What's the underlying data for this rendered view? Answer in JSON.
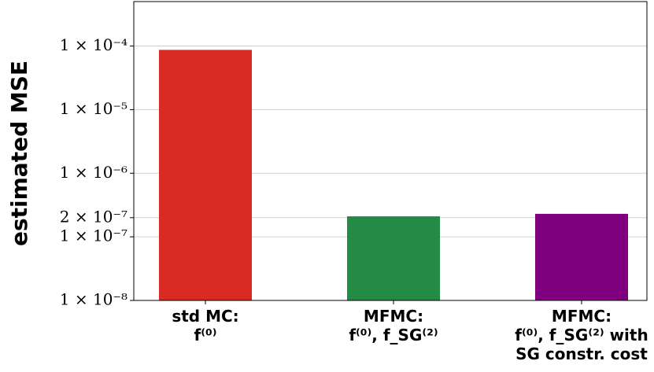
{
  "chart_data": {
    "type": "bar",
    "y_label": "estimated MSE",
    "categories": [
      "std MC:\nf⁽⁰⁾",
      "MFMC:\nf⁽⁰⁾, f_SG⁽²⁾",
      "MFMC:\nf⁽⁰⁾, f_SG⁽²⁾ with\nSG constr. cost"
    ],
    "series": [
      {
        "name": "estimated MSE",
        "colors": [
          "#d92a24",
          "#238b45",
          "#7f007f"
        ],
        "values": [
          8.7e-05,
          2.1e-07,
          2.3e-07
        ]
      }
    ],
    "log_y": true,
    "grid": true,
    "ylim": [
      1e-08,
      0.0005
    ],
    "yticks": [
      {
        "value": 1e-08,
        "label": "1 × 10⁻⁸"
      },
      {
        "value": 1e-07,
        "label": "1 × 10⁻⁷"
      },
      {
        "value": 2e-07,
        "label": "2 × 10⁻⁷"
      },
      {
        "value": 1e-06,
        "label": "1 × 10⁻⁶"
      },
      {
        "value": 1e-05,
        "label": "1 × 10⁻⁵"
      },
      {
        "value": 0.0001,
        "label": "1 × 10⁻⁴"
      }
    ]
  }
}
